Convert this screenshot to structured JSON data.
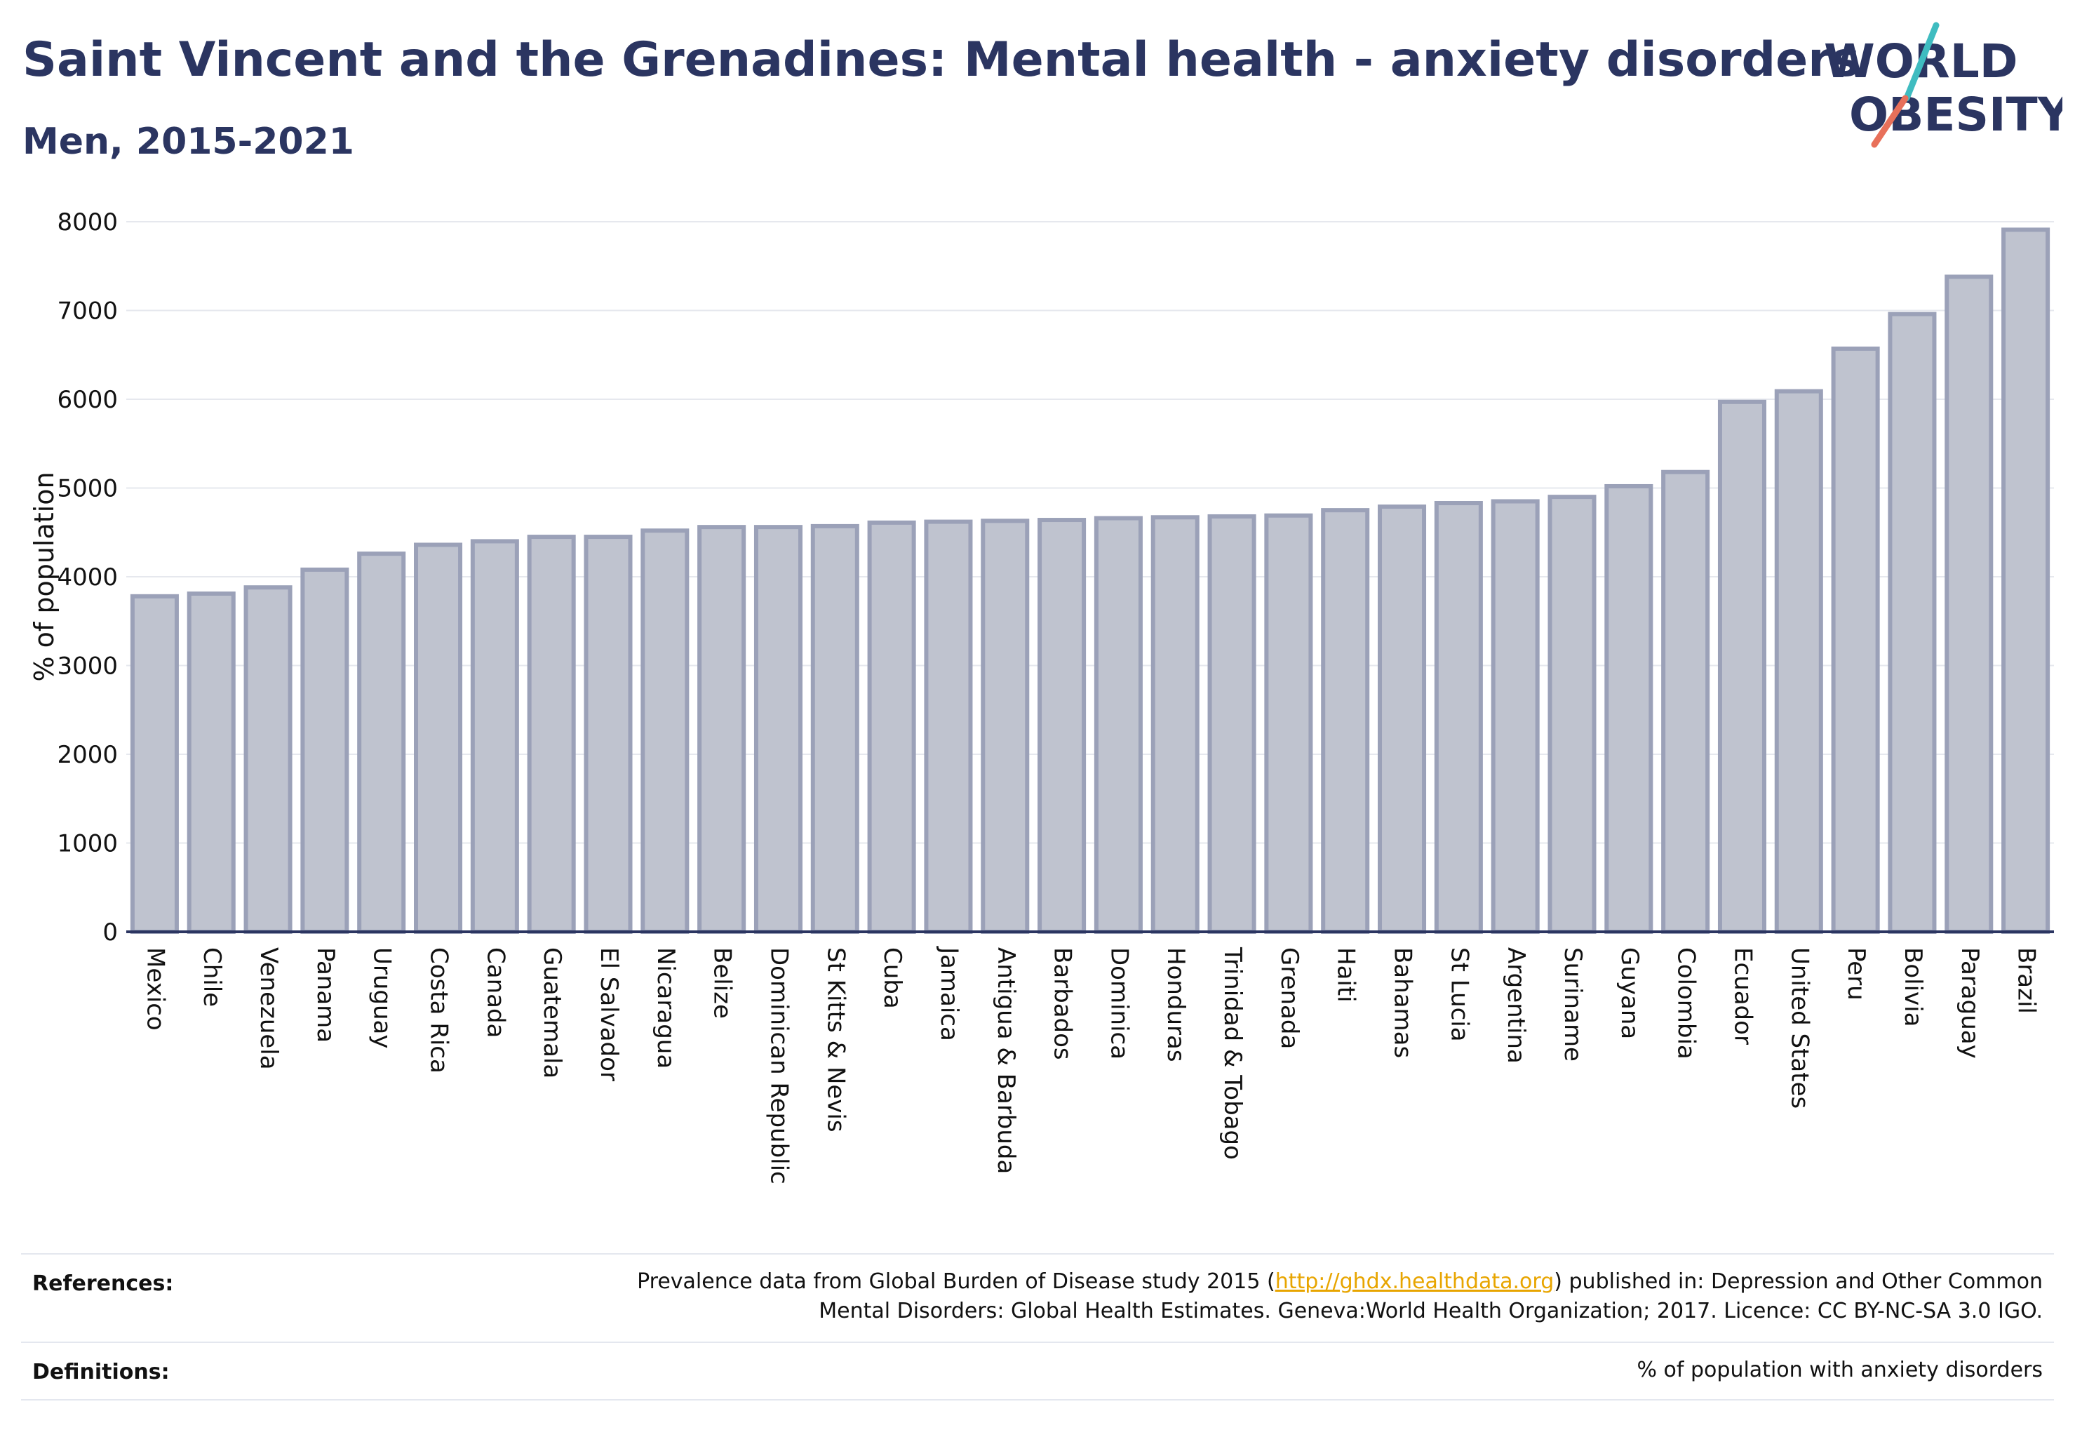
{
  "header": {
    "title": "Saint Vincent and the Grenadines: Mental health - anxiety disorders",
    "subtitle": "Men, 2015-2021"
  },
  "logo": {
    "line1": "WORLD",
    "line2": "OBESITY",
    "accent_teal": "#3fbcc0",
    "accent_coral": "#e8705a"
  },
  "colors": {
    "bar_fill": "#bfc3cf",
    "bar_stroke": "#9ba1b8",
    "axis": "#2b3561",
    "grid": "#e6e8ee"
  },
  "chart_data": {
    "type": "bar",
    "ylabel": "% of population",
    "ylim": [
      0,
      8000
    ],
    "yticks": [
      0,
      1000,
      2000,
      3000,
      4000,
      5000,
      6000,
      7000,
      8000
    ],
    "grid": true,
    "categories": [
      "Mexico",
      "Chile",
      "Venezuela",
      "Panama",
      "Uruguay",
      "Costa Rica",
      "Canada",
      "Guatemala",
      "El Salvador",
      "Nicaragua",
      "Belize",
      "Dominican Republic",
      "St Kitts & Nevis",
      "Cuba",
      "Jamaica",
      "Antigua & Barbuda",
      "Barbados",
      "Dominica",
      "Honduras",
      "Trinidad & Tobago",
      "Grenada",
      "Haiti",
      "Bahamas",
      "St Lucia",
      "Argentina",
      "Suriname",
      "Guyana",
      "Colombia",
      "Ecuador",
      "United States",
      "Peru",
      "Bolivia",
      "Paraguay",
      "Brazil"
    ],
    "values": [
      3780,
      3810,
      3880,
      4080,
      4260,
      4360,
      4400,
      4450,
      4450,
      4520,
      4560,
      4560,
      4570,
      4610,
      4620,
      4630,
      4640,
      4660,
      4670,
      4680,
      4690,
      4750,
      4790,
      4830,
      4850,
      4900,
      5020,
      5180,
      5970,
      6090,
      6570,
      6960,
      7380,
      7910
    ]
  },
  "footer": {
    "references_label": "References:",
    "references_line1_pre": "Prevalence data from Global Burden of Disease study 2015 (",
    "references_link": "http://ghdx.healthdata.org",
    "references_line1_post": ") published in: Depression and Other Common",
    "references_line2": "Mental Disorders: Global Health Estimates. Geneva:World Health Organization; 2017. Licence: CC BY-NC-SA 3.0 IGO.",
    "definitions_label": "Definitions:",
    "definitions_text": "% of population with anxiety disorders"
  }
}
